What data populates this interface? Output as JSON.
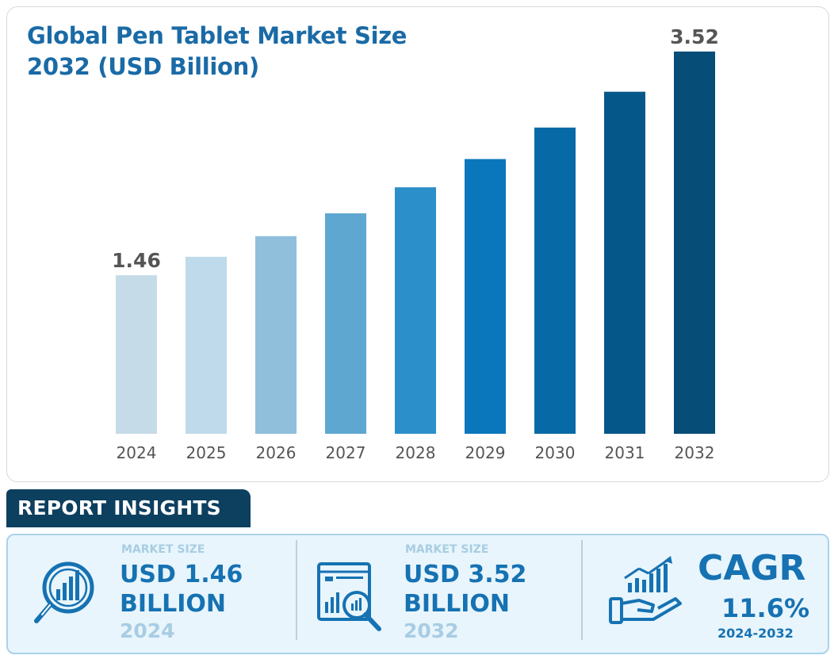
{
  "chart_data": {
    "type": "bar",
    "title": "Global Pen Tablet Market Size 2032 (USD Billion)",
    "xlabel": "",
    "ylabel": "",
    "categories": [
      "2024",
      "2025",
      "2026",
      "2027",
      "2028",
      "2029",
      "2030",
      "2031",
      "2032"
    ],
    "values": [
      1.46,
      1.63,
      1.82,
      2.03,
      2.27,
      2.53,
      2.82,
      3.15,
      3.52
    ],
    "data_labels": [
      {
        "category": "2024",
        "text": "1.46"
      },
      {
        "category": "2032",
        "text": "3.52"
      }
    ],
    "ylim": [
      0,
      3.52
    ],
    "grid": false,
    "bar_colors": [
      "#c5dbe7",
      "#bfdaea",
      "#90bfdc",
      "#5ea7d1",
      "#2b8fca",
      "#0a77bc",
      "#0769a5",
      "#065789",
      "#064d78"
    ]
  },
  "insights": {
    "tab_label": "REPORT INSIGHTS",
    "blocks": [
      {
        "label": "MARKET SIZE",
        "value_line1": "USD 1.46",
        "value_line2": "BILLION",
        "year": "2024"
      },
      {
        "label": "MARKET SIZE",
        "value_line1": "USD 3.52",
        "value_line2": "BILLION",
        "year": "2032"
      }
    ],
    "cagr": {
      "title": "CAGR",
      "value": "11.6%",
      "period": "2024-2032"
    },
    "icons": [
      "magnifier-chart-icon",
      "dashboard-search-icon",
      "growth-hand-icon"
    ]
  },
  "colors": {
    "title": "#1a6aa6",
    "tab_bg": "#0d3f5f",
    "panel_bg": "#e8f5fc",
    "accent": "#1672b2",
    "muted": "#a8cde3",
    "label_text": "#555555"
  }
}
